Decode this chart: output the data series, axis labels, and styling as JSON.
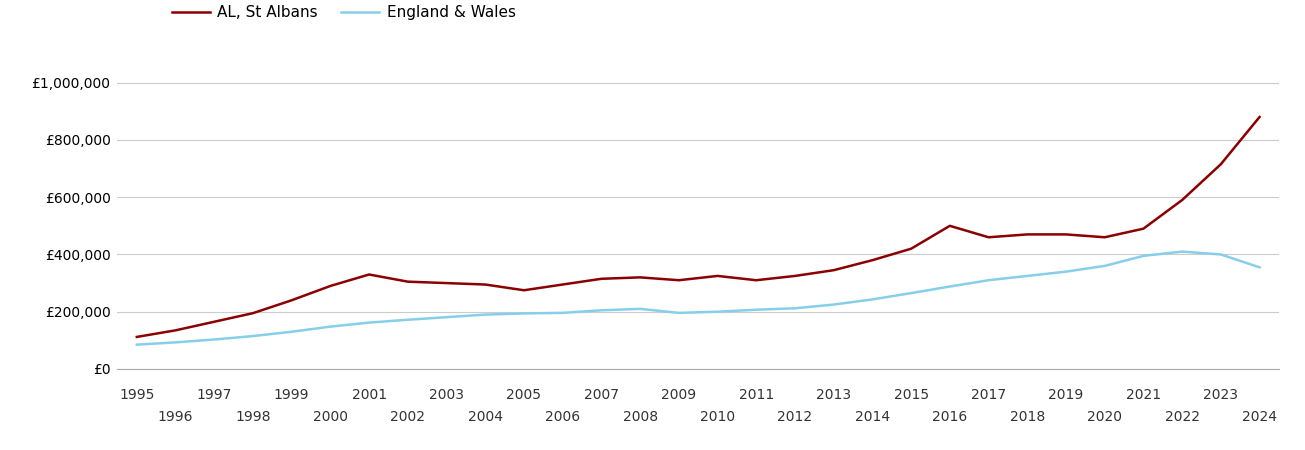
{
  "st_albans_years": [
    1995,
    1996,
    1997,
    1998,
    1999,
    2000,
    2001,
    2002,
    2003,
    2004,
    2005,
    2006,
    2007,
    2008,
    2009,
    2010,
    2011,
    2012,
    2013,
    2014,
    2015,
    2016,
    2017,
    2018,
    2019,
    2020,
    2021,
    2022,
    2023,
    2024
  ],
  "st_albans_values": [
    112000,
    135000,
    165000,
    195000,
    240000,
    290000,
    330000,
    305000,
    300000,
    295000,
    275000,
    295000,
    315000,
    320000,
    310000,
    325000,
    310000,
    325000,
    345000,
    380000,
    420000,
    500000,
    460000,
    470000,
    470000,
    460000,
    490000,
    590000,
    715000,
    880000
  ],
  "ew_years": [
    1995,
    1996,
    1997,
    1998,
    1999,
    2000,
    2001,
    2002,
    2003,
    2004,
    2005,
    2006,
    2007,
    2008,
    2009,
    2010,
    2011,
    2012,
    2013,
    2014,
    2015,
    2016,
    2017,
    2018,
    2019,
    2020,
    2021,
    2022,
    2023,
    2024
  ],
  "ew_values": [
    85000,
    93000,
    103000,
    115000,
    130000,
    148000,
    162000,
    172000,
    181000,
    190000,
    194000,
    196000,
    205000,
    210000,
    196000,
    200000,
    207000,
    212000,
    225000,
    243000,
    265000,
    288000,
    310000,
    325000,
    340000,
    360000,
    395000,
    410000,
    400000,
    355000
  ],
  "st_albans_color": "#8B0000",
  "ew_color": "#87CEEB",
  "st_albans_label": "AL, St Albans",
  "ew_label": "England & Wales",
  "ylim": [
    0,
    1100000
  ],
  "yticks": [
    0,
    200000,
    400000,
    600000,
    800000,
    1000000
  ],
  "ytick_labels": [
    "£0",
    "£200,000",
    "£400,000",
    "£600,000",
    "£800,000",
    "£1,000,000"
  ],
  "xlim_start": 1994.5,
  "xlim_end": 2024.5,
  "background_color": "#ffffff",
  "grid_color": "#cccccc",
  "line_width": 1.8,
  "legend_fontsize": 11,
  "tick_fontsize": 10
}
